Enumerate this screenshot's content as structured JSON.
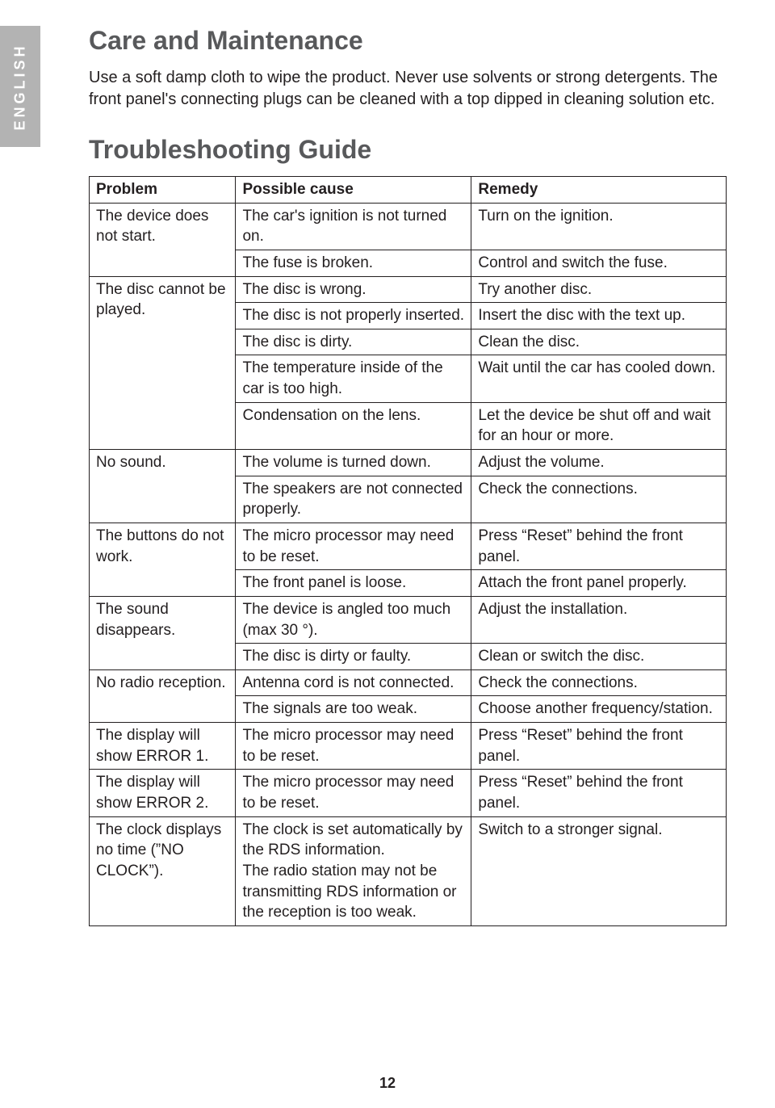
{
  "page_number": "12",
  "language_tab": "ENGLISH",
  "section1": {
    "title": "Care and Maintenance",
    "paragraph": "Use a soft damp cloth to wipe the product. Never use solvents or strong detergents. The front panel's connecting plugs can be cleaned with a top dipped in cleaning solution etc."
  },
  "section2": {
    "title": "Troubleshooting Guide",
    "headers": {
      "c1": "Problem",
      "c2": "Possible cause",
      "c3": "Remedy"
    },
    "rows": [
      {
        "problem": "The device does not start.",
        "rowspan": 2,
        "cause": "The car's ignition is not turned on.",
        "remedy": "Turn on the ignition."
      },
      {
        "cause": "The fuse is broken.",
        "remedy": "Control and switch the fuse."
      },
      {
        "problem": "The disc cannot be played.",
        "rowspan": 5,
        "cause": "The disc is wrong.",
        "remedy": "Try another disc."
      },
      {
        "cause": "The disc is not properly inserted.",
        "remedy": "Insert the disc with the text up."
      },
      {
        "cause": "The disc is dirty.",
        "remedy": "Clean the disc."
      },
      {
        "cause": "The temperature inside of the car is too high.",
        "remedy": "Wait until the car has cooled down."
      },
      {
        "cause": "Condensation on the lens.",
        "remedy": "Let the device be shut off and wait for an hour or more."
      },
      {
        "problem": "No sound.",
        "rowspan": 2,
        "cause": "The volume is turned down.",
        "remedy": "Adjust the volume."
      },
      {
        "cause": "The speakers are not con­nected properly.",
        "remedy": "Check the connections."
      },
      {
        "problem": "The buttons do not work.",
        "rowspan": 2,
        "cause": "The micro processor may need to be reset.",
        "remedy": "Press “Reset” behind the front panel."
      },
      {
        "cause": "The front panel is loose.",
        "remedy": "Attach the front panel properly."
      },
      {
        "problem": "The sound disappears.",
        "rowspan": 2,
        "cause": "The device is angled too much (max 30 °).",
        "remedy": "Adjust the installation."
      },
      {
        "cause": "The disc is dirty or faulty.",
        "remedy": "Clean or switch the disc."
      },
      {
        "problem": "No radio reception.",
        "rowspan": 2,
        "cause": "Antenna cord is not con­nected.",
        "remedy": "Check the connections."
      },
      {
        "cause": "The signals are too weak.",
        "remedy": "Choose another frequency/station."
      },
      {
        "problem": "The display will show ERROR 1.",
        "rowspan": 1,
        "cause": "The micro processor may need to be reset.",
        "remedy": "Press “Reset” behind the front panel."
      },
      {
        "problem": "The display will show ERROR 2.",
        "rowspan": 1,
        "cause": "The micro processor may need to be reset.",
        "remedy": "Press “Reset” behind the front panel."
      },
      {
        "problem": "The clock dis­plays no time (”NO CLOCK”).",
        "rowspan": 1,
        "cause": "The clock is set automati­cally by the RDS informa­tion.\nThe radio station may not be transmitting RDS infor­mation or the reception is too weak.",
        "remedy": "Switch to a stronger signal."
      }
    ]
  },
  "colors": {
    "heading": "#58595b",
    "tab_bg": "#b3b3b3",
    "tab_text": "#ffffff",
    "body_text": "#231f20",
    "border": "#231f20"
  }
}
